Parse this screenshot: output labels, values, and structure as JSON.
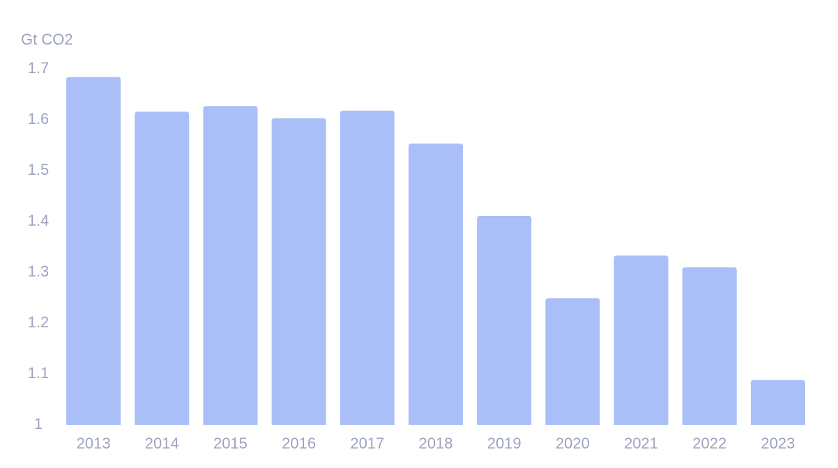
{
  "chart_data": {
    "type": "bar",
    "y_label": "Gt CO2",
    "categories": [
      "2013",
      "2014",
      "2015",
      "2016",
      "2017",
      "2018",
      "2019",
      "2020",
      "2021",
      "2022",
      "2023"
    ],
    "values": [
      1.684,
      1.616,
      1.627,
      1.603,
      1.618,
      1.553,
      1.411,
      1.249,
      1.333,
      1.31,
      1.088
    ],
    "color": "#aabff8",
    "ylim": [
      1,
      1.7
    ],
    "yticks": [
      1,
      1.1,
      1.2,
      1.3,
      1.4,
      1.5,
      1.6,
      1.7
    ],
    "grid": false
  }
}
